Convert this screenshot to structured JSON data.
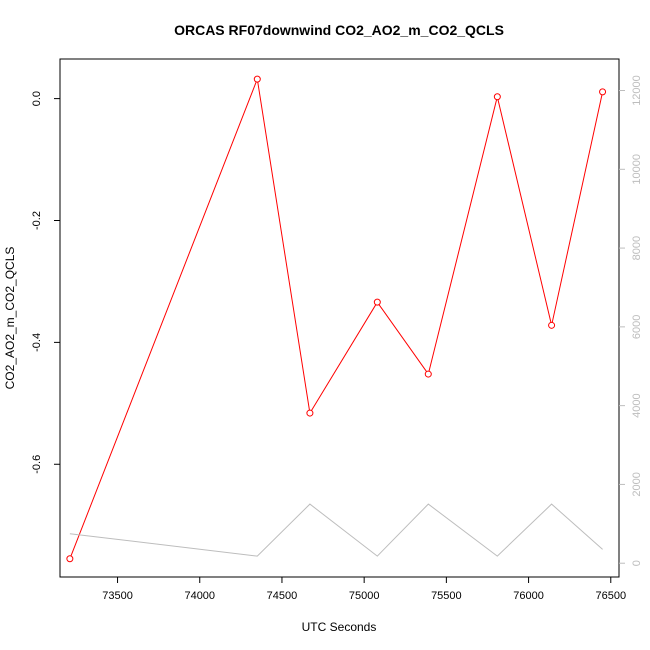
{
  "chart_data": {
    "type": "line",
    "title": "ORCAS RF07downwind CO2_AO2_m_CO2_QCLS",
    "xlabel": "UTC Seconds",
    "ylabel": "CO2_AO2_m_CO2_QCLS",
    "xlim": [
      73150,
      76550
    ],
    "ylim": [
      -0.785,
      0.065
    ],
    "y2lim": [
      -350,
      12800
    ],
    "x_ticks": [
      73500,
      74000,
      74500,
      75000,
      75500,
      76000,
      76500
    ],
    "y_ticks": [
      0.0,
      -0.2,
      -0.4,
      -0.6
    ],
    "y_tick_labels": [
      "0.0",
      "-0.2",
      "-0.4",
      "-0.6"
    ],
    "y2_ticks": [
      0,
      2000,
      4000,
      6000,
      8000,
      10000,
      12000
    ],
    "grid": false,
    "series": [
      {
        "axis": "left",
        "color": "#ff0000",
        "markers": "open-circle",
        "x": [
          73210,
          74350,
          74670,
          75080,
          75390,
          75810,
          76140,
          76450
        ],
        "values": [
          -0.755,
          0.032,
          -0.516,
          -0.334,
          -0.452,
          0.003,
          -0.372,
          0.011
        ]
      },
      {
        "axis": "right",
        "color": "#bdbdbd",
        "markers": "none",
        "x": [
          73210,
          74350,
          74670,
          75080,
          75390,
          75810,
          76140,
          76450
        ],
        "values": [
          750,
          180,
          1500,
          180,
          1500,
          180,
          1500,
          350
        ]
      }
    ]
  }
}
